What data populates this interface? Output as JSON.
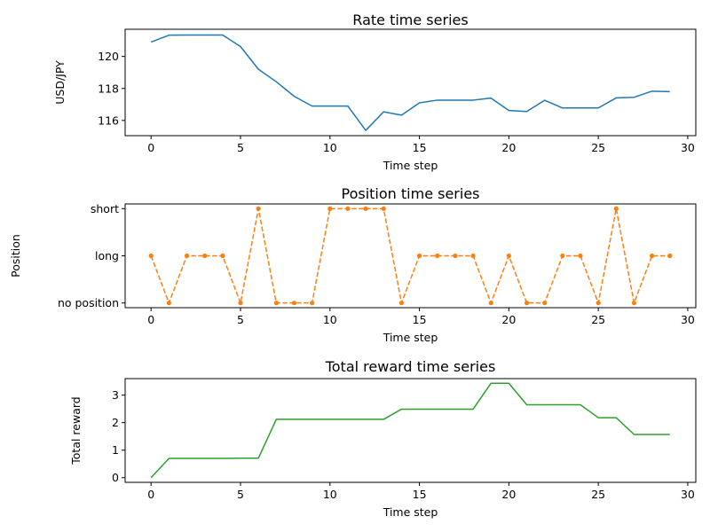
{
  "chart_data": [
    {
      "type": "line",
      "title": "Rate time series",
      "xlabel": "Time step",
      "ylabel": "USD/JPY",
      "xlim": [
        -1.45,
        30.45
      ],
      "ylim": [
        115.05,
        121.7
      ],
      "xticks": [
        0,
        5,
        10,
        15,
        20,
        25,
        30
      ],
      "yticks": [
        116,
        118,
        120
      ],
      "grid": false,
      "series": [
        {
          "color": "#1f77b4",
          "line_style": "solid",
          "marker": "none",
          "x": [
            0,
            1,
            2,
            3,
            4,
            5,
            6,
            7,
            8,
            9,
            10,
            11,
            12,
            13,
            14,
            15,
            16,
            17,
            18,
            19,
            20,
            21,
            22,
            23,
            24,
            25,
            26,
            27,
            28,
            29
          ],
          "values": [
            120.9,
            121.33,
            121.34,
            121.34,
            121.34,
            120.62,
            119.2,
            118.42,
            117.51,
            116.9,
            116.9,
            116.9,
            115.38,
            116.54,
            116.33,
            117.1,
            117.27,
            117.27,
            117.27,
            117.4,
            116.62,
            116.56,
            117.26,
            116.78,
            116.78,
            116.78,
            117.41,
            117.45,
            117.83,
            117.8
          ]
        }
      ]
    },
    {
      "type": "line",
      "title": "Position time series",
      "xlabel": "Time step",
      "ylabel": "Position",
      "xlim": [
        -1.45,
        30.45
      ],
      "ylim": [
        -0.1,
        2.1
      ],
      "xticks": [
        0,
        5,
        10,
        15,
        20,
        25,
        30
      ],
      "ytick_values": [
        0,
        1,
        2
      ],
      "yticks": [
        "no position",
        "long",
        "short"
      ],
      "grid": false,
      "series": [
        {
          "color": "#ff7f0e",
          "line_style": "dashed",
          "marker": "dot",
          "x": [
            0,
            1,
            2,
            3,
            4,
            5,
            6,
            7,
            8,
            9,
            10,
            11,
            12,
            13,
            14,
            15,
            16,
            17,
            18,
            19,
            20,
            21,
            22,
            23,
            24,
            25,
            26,
            27,
            28,
            29
          ],
          "values": [
            1,
            0,
            1,
            1,
            1,
            0,
            2,
            0,
            0,
            0,
            2,
            2,
            2,
            2,
            0,
            1,
            1,
            1,
            1,
            0,
            1,
            0,
            0,
            1,
            1,
            0,
            2,
            0,
            1,
            1
          ]
        }
      ]
    },
    {
      "type": "line",
      "title": "Total reward time series",
      "xlabel": "Time step",
      "ylabel": "Total reward",
      "xlim": [
        -1.45,
        30.45
      ],
      "ylim": [
        -0.17,
        3.6
      ],
      "xticks": [
        0,
        5,
        10,
        15,
        20,
        25,
        30
      ],
      "yticks": [
        0,
        1,
        2,
        3
      ],
      "grid": false,
      "series": [
        {
          "color": "#2ca02c",
          "line_style": "solid",
          "marker": "none",
          "x": [
            0,
            1,
            2,
            3,
            4,
            5,
            6,
            7,
            8,
            9,
            10,
            11,
            12,
            13,
            14,
            15,
            16,
            17,
            18,
            19,
            20,
            21,
            22,
            23,
            24,
            25,
            26,
            27,
            28,
            29
          ],
          "values": [
            0,
            0.7,
            0.7,
            0.7,
            0.7,
            0.71,
            0.71,
            2.12,
            2.12,
            2.12,
            2.12,
            2.12,
            2.12,
            2.12,
            2.49,
            2.49,
            2.49,
            2.49,
            2.49,
            3.43,
            3.43,
            2.65,
            2.65,
            2.65,
            2.65,
            2.18,
            2.18,
            1.57,
            1.57,
            1.57
          ]
        }
      ]
    }
  ]
}
